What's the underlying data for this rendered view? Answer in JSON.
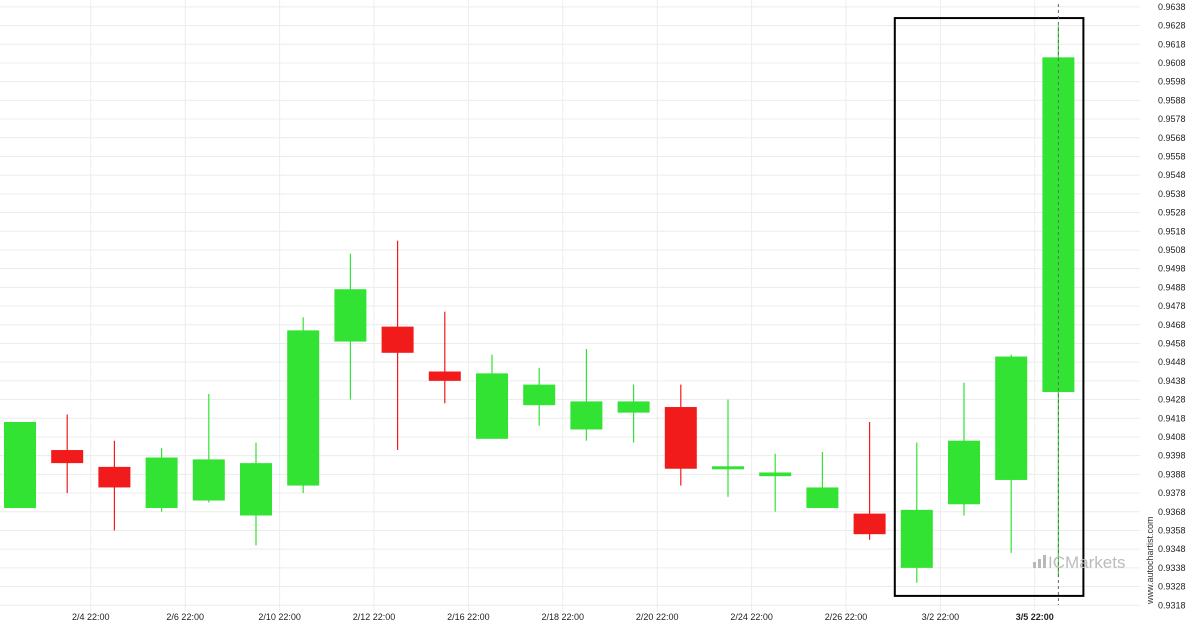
{
  "brand": {
    "watermark": "ICMarkets",
    "credit": "www.autochartist.com"
  },
  "colors": {
    "up": "#33e333",
    "down": "#f11b1b",
    "grid": "#ececec",
    "box": "#000000"
  },
  "chart_data": {
    "type": "candlestick",
    "title": "",
    "xlabel": "",
    "ylabel": "",
    "ylim": [
      0.9313,
      0.9643
    ],
    "y_ticks": [
      "0.9318",
      "0.9328",
      "0.9338",
      "0.9348",
      "0.9358",
      "0.9368",
      "0.9378",
      "0.9388",
      "0.9398",
      "0.9408",
      "0.9418",
      "0.9428",
      "0.9438",
      "0.9448",
      "0.9458",
      "0.9468",
      "0.9478",
      "0.9488",
      "0.9498",
      "0.9508",
      "0.9518",
      "0.9528",
      "0.9538",
      "0.9548",
      "0.9558",
      "0.9568",
      "0.9578",
      "0.9588",
      "0.9598",
      "0.9608",
      "0.9618",
      "0.9628",
      "0.9638"
    ],
    "x_ticks": [
      {
        "index": 1.5,
        "label": "2/4 22:00",
        "bold": false
      },
      {
        "index": 3.5,
        "label": "2/6 22:00",
        "bold": false
      },
      {
        "index": 5.5,
        "label": "2/10 22:00",
        "bold": false
      },
      {
        "index": 7.5,
        "label": "2/12 22:00",
        "bold": false
      },
      {
        "index": 9.5,
        "label": "2/16 22:00",
        "bold": false
      },
      {
        "index": 11.5,
        "label": "2/18 22:00",
        "bold": false
      },
      {
        "index": 13.5,
        "label": "2/20 22:00",
        "bold": false
      },
      {
        "index": 15.5,
        "label": "2/24 22:00",
        "bold": false
      },
      {
        "index": 17.5,
        "label": "2/26 22:00",
        "bold": false
      },
      {
        "index": 19.5,
        "label": "3/2 22:00",
        "bold": false
      },
      {
        "index": 21.5,
        "label": "3/5 22:00",
        "bold": true
      }
    ],
    "candles": [
      {
        "index": 0,
        "open": 0.937,
        "high": 0.9416,
        "low": 0.937,
        "close": 0.9416
      },
      {
        "index": 1,
        "open": 0.9401,
        "high": 0.942,
        "low": 0.9378,
        "close": 0.9394
      },
      {
        "index": 2,
        "open": 0.9392,
        "high": 0.9406,
        "low": 0.9358,
        "close": 0.9381
      },
      {
        "index": 3,
        "open": 0.937,
        "high": 0.9402,
        "low": 0.9368,
        "close": 0.9397
      },
      {
        "index": 4,
        "open": 0.9374,
        "high": 0.9431,
        "low": 0.9373,
        "close": 0.9396
      },
      {
        "index": 5,
        "open": 0.9366,
        "high": 0.9405,
        "low": 0.935,
        "close": 0.9394
      },
      {
        "index": 6,
        "open": 0.9382,
        "high": 0.9472,
        "low": 0.9378,
        "close": 0.9465
      },
      {
        "index": 7,
        "open": 0.9459,
        "high": 0.9506,
        "low": 0.9428,
        "close": 0.9487
      },
      {
        "index": 8,
        "open": 0.9467,
        "high": 0.9513,
        "low": 0.9401,
        "close": 0.9453
      },
      {
        "index": 9,
        "open": 0.9443,
        "high": 0.9475,
        "low": 0.9426,
        "close": 0.9438
      },
      {
        "index": 10,
        "open": 0.9407,
        "high": 0.9452,
        "low": 0.9407,
        "close": 0.9442
      },
      {
        "index": 11,
        "open": 0.9425,
        "high": 0.9445,
        "low": 0.9414,
        "close": 0.9436
      },
      {
        "index": 12,
        "open": 0.9412,
        "high": 0.9455,
        "low": 0.9406,
        "close": 0.9427
      },
      {
        "index": 13,
        "open": 0.9421,
        "high": 0.9436,
        "low": 0.9405,
        "close": 0.9427
      },
      {
        "index": 14,
        "open": 0.9424,
        "high": 0.9436,
        "low": 0.9382,
        "close": 0.9391
      },
      {
        "index": 15,
        "open": 0.9391,
        "high": 0.9428,
        "low": 0.9376,
        "close": 0.9392
      },
      {
        "index": 16,
        "open": 0.9387,
        "high": 0.9399,
        "low": 0.9368,
        "close": 0.9389
      },
      {
        "index": 17,
        "open": 0.937,
        "high": 0.94,
        "low": 0.937,
        "close": 0.9381
      },
      {
        "index": 18,
        "open": 0.9367,
        "high": 0.9416,
        "low": 0.9353,
        "close": 0.9356
      },
      {
        "index": 19,
        "open": 0.9338,
        "high": 0.9405,
        "low": 0.933,
        "close": 0.9369
      },
      {
        "index": 20,
        "open": 0.9372,
        "high": 0.9437,
        "low": 0.9366,
        "close": 0.9406
      },
      {
        "index": 21,
        "open": 0.9385,
        "high": 0.9452,
        "low": 0.9346,
        "close": 0.9451
      },
      {
        "index": 22,
        "open": 0.9432,
        "high": 0.9628,
        "low": 0.9333,
        "close": 0.9611
      }
    ],
    "highlight_box": {
      "from_index": 19,
      "to_index": 22,
      "top": 0.9632,
      "bottom": 0.9323
    },
    "marker_line_index": 22,
    "grid": true
  }
}
